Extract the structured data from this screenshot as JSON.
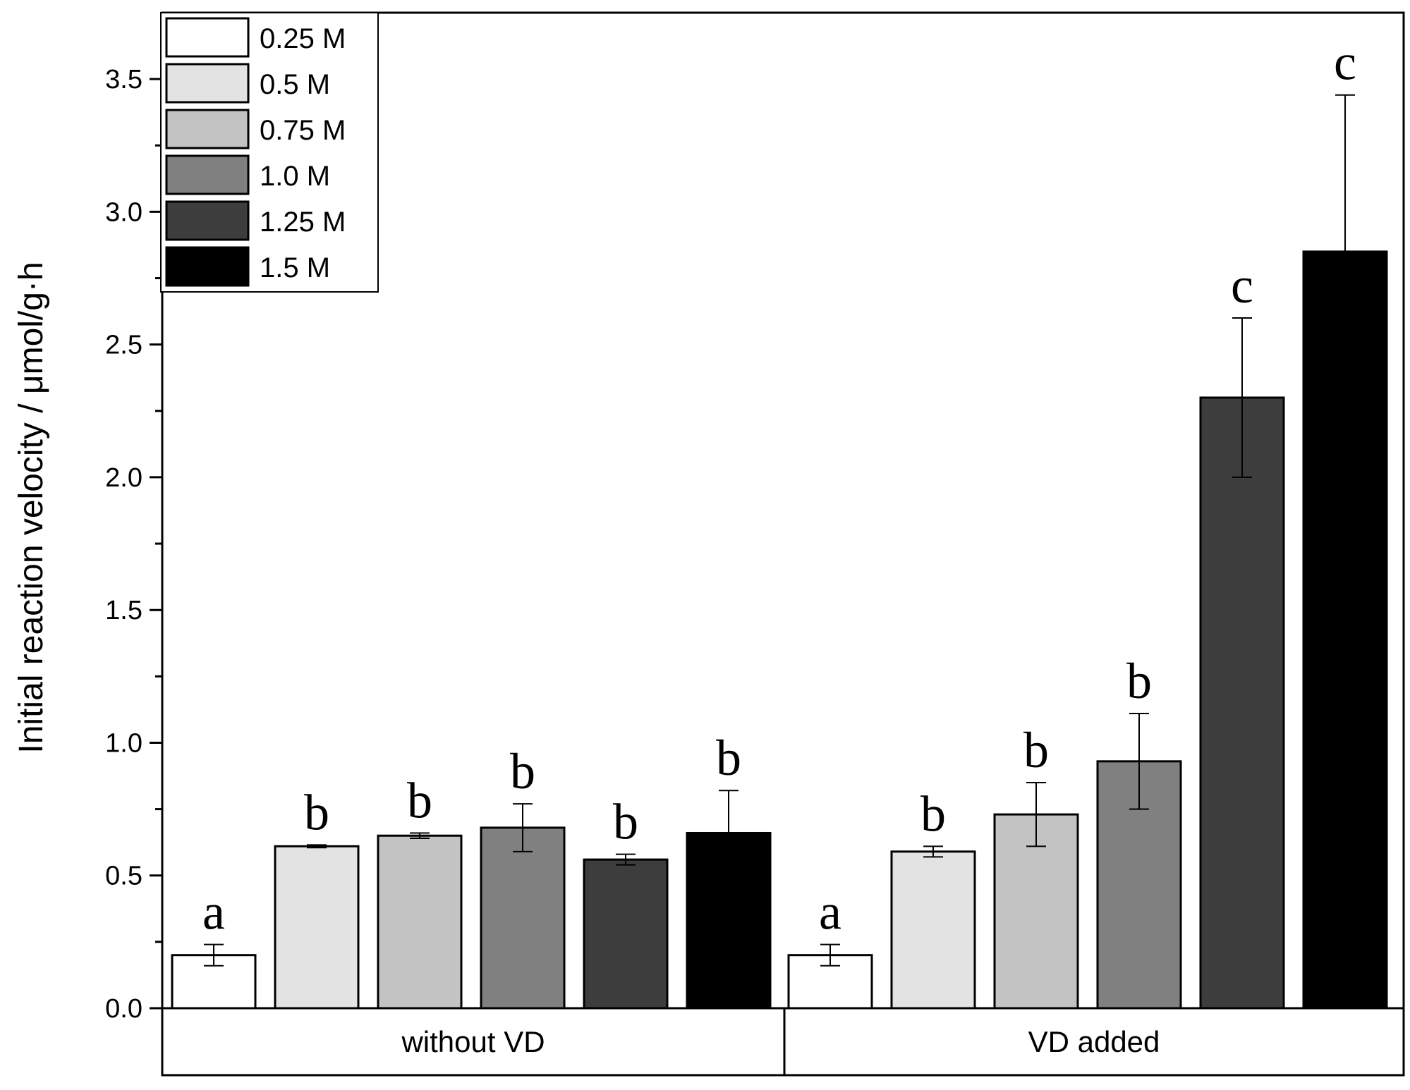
{
  "chart_data": {
    "type": "bar",
    "title": "",
    "xlabel": "",
    "ylabel": "Initial reaction velocity / μmol/g·h",
    "ylim": [
      0,
      3.75
    ],
    "yticks": [
      "0.0",
      "0.5",
      "1.0",
      "1.5",
      "2.0",
      "2.5",
      "3.0",
      "3.5"
    ],
    "ytick_values": [
      0,
      0.5,
      1.0,
      1.5,
      2.0,
      2.5,
      3.0,
      3.5
    ],
    "categories": [
      "without VD",
      "VD added"
    ],
    "legend_position": "top-left",
    "series": [
      {
        "name": "0.25 M",
        "color": "#ffffff",
        "values": [
          0.2,
          0.2
        ],
        "errors": [
          0.04,
          0.04
        ],
        "letters": [
          "a",
          "a"
        ]
      },
      {
        "name": "0.5 M",
        "color": "#e3e3e3",
        "values": [
          0.61,
          0.59
        ],
        "errors": [
          0.005,
          0.02
        ],
        "letters": [
          "b",
          "b"
        ]
      },
      {
        "name": "0.75 M",
        "color": "#c3c3c3",
        "values": [
          0.65,
          0.73
        ],
        "errors": [
          0.01,
          0.12
        ],
        "letters": [
          "b",
          "b"
        ]
      },
      {
        "name": "1.0 M",
        "color": "#808080",
        "values": [
          0.68,
          0.93
        ],
        "errors": [
          0.09,
          0.18
        ],
        "letters": [
          "b",
          "b"
        ]
      },
      {
        "name": "1.25 M",
        "color": "#3d3d3d",
        "values": [
          0.56,
          2.3
        ],
        "errors": [
          0.02,
          0.3
        ],
        "letters": [
          "b",
          "c"
        ]
      },
      {
        "name": "1.5 M",
        "color": "#000000",
        "values": [
          0.66,
          2.85
        ],
        "errors": [
          0.16,
          0.59
        ],
        "letters": [
          "b",
          "c"
        ]
      }
    ]
  }
}
